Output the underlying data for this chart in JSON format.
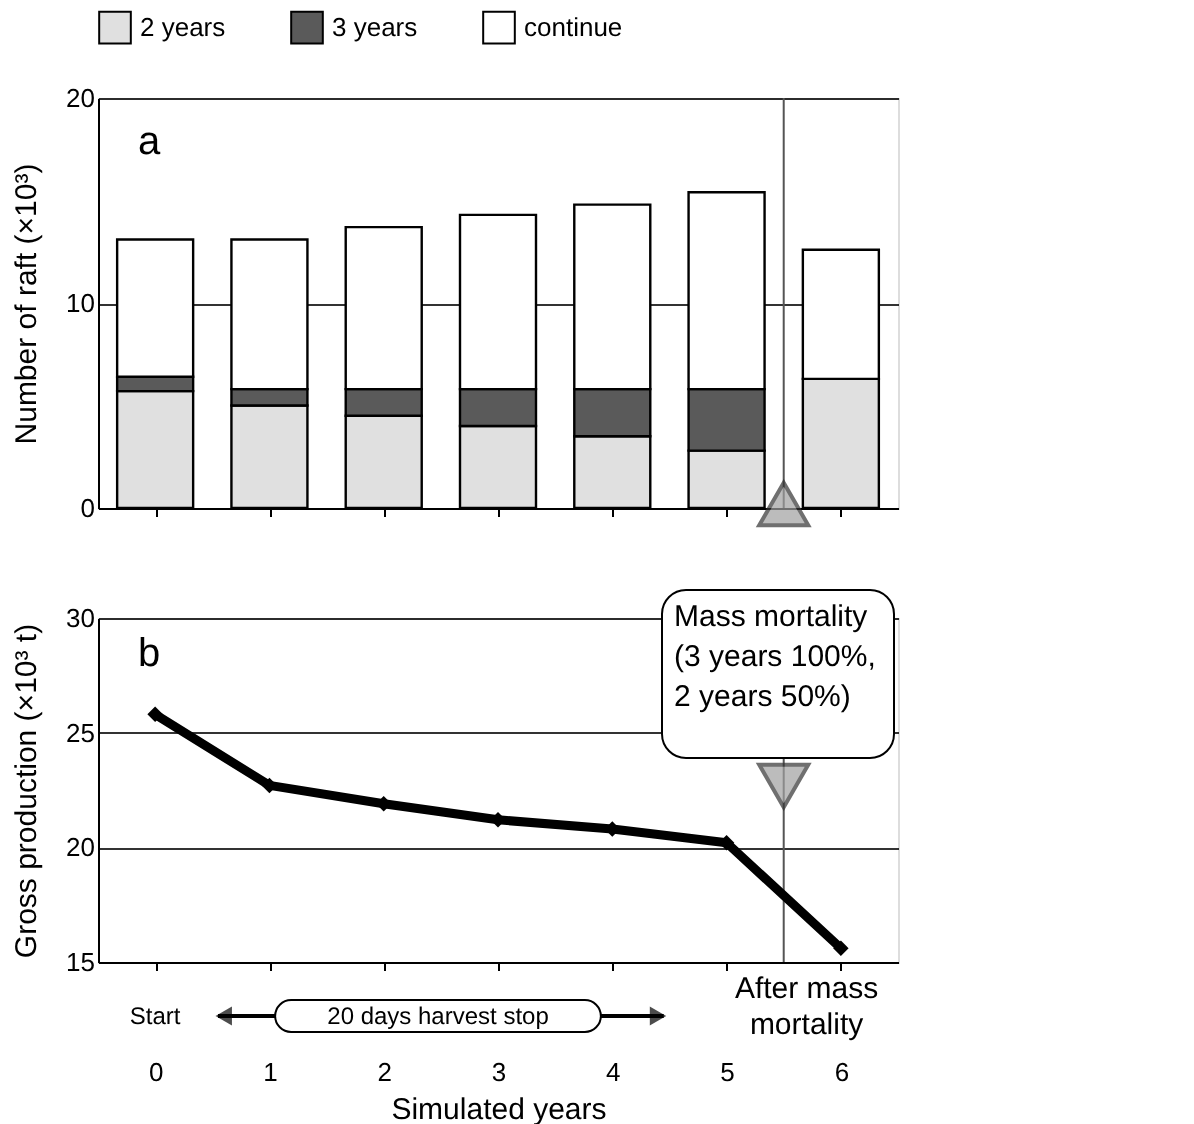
{
  "chart_data": [
    {
      "type": "bar",
      "stacked": true,
      "x": [
        0,
        1,
        2,
        3,
        4,
        5,
        6
      ],
      "xlim": [
        -0.5,
        6.5
      ],
      "xticks": [
        {
          "value": 0,
          "label": null
        },
        {
          "value": 1,
          "label": null
        },
        {
          "value": 2,
          "label": null
        },
        {
          "value": 3,
          "label": null
        },
        {
          "value": 4,
          "label": null
        },
        {
          "value": 5,
          "label": null
        },
        {
          "value": 6,
          "label": null
        }
      ],
      "ylim": [
        0,
        20
      ],
      "yticks": [
        0,
        10,
        20
      ],
      "ylabel": "Number of raft (×10³)",
      "tick_labels": "y",
      "grid": "y",
      "legend": "top",
      "series": [
        {
          "name": "2 years",
          "color": "#e0e0e0",
          "values": [
            5.7,
            5.0,
            4.5,
            4.0,
            3.5,
            2.8,
            6.3
          ]
        },
        {
          "name": "3 years",
          "color": "#5a5a5a",
          "values": [
            0.7,
            0.8,
            1.3,
            1.8,
            2.3,
            3.0,
            0.0
          ]
        },
        {
          "name": "continue",
          "color": "#ffffff",
          "values": [
            6.7,
            7.3,
            7.9,
            8.5,
            9.0,
            9.6,
            6.3
          ]
        }
      ],
      "ref_lines": [
        {
          "axis": "x",
          "value": 5.5,
          "color": "#555555"
        }
      ],
      "annotations": [
        "a"
      ]
    },
    {
      "type": "line",
      "x": [
        0,
        1,
        2,
        3,
        4,
        5,
        6
      ],
      "xlim": [
        -0.5,
        6.5
      ],
      "xticks": [
        0,
        1,
        2,
        3,
        4,
        5,
        6
      ],
      "ylim": [
        15,
        30
      ],
      "yticks": [
        15,
        20,
        25,
        30
      ],
      "ylabel": "Gross production (×10³ t)",
      "xlabel": "Simulated years",
      "grid": "y",
      "marker": "diamond",
      "line_style": "solid",
      "series": [
        {
          "color": "#000000",
          "values": [
            25.8,
            22.7,
            21.9,
            21.2,
            20.8,
            20.2,
            15.6
          ]
        }
      ],
      "ref_lines": [
        {
          "axis": "x",
          "value": 5.5,
          "color": "#555555"
        }
      ],
      "annotations": [
        "b",
        "Mass mortality\n(3 years 100%,\n     2 years 50%)",
        "Start",
        "20 days harvest stop",
        "After mass\nmortality"
      ]
    }
  ]
}
